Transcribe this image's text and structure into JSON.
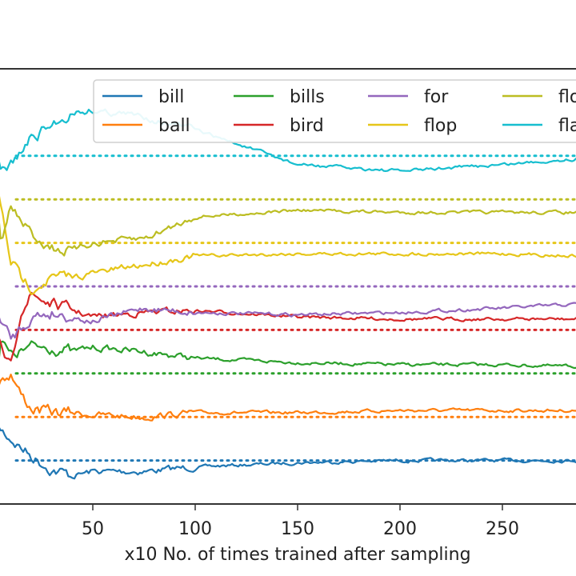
{
  "chart_data": {
    "type": "line",
    "title": "",
    "xlabel": "x10 No. of times trained after sampling",
    "ylabel": "",
    "x_ticks": [
      50,
      100,
      150,
      200,
      250
    ],
    "xlim": [
      0,
      290
    ],
    "legend_position": "top-right",
    "legend_columns": 4,
    "series": [
      {
        "name": "bill",
        "color": "#1f77b4",
        "target": 0.9,
        "points": [
          [
            0,
            0.79
          ],
          [
            5,
            0.83
          ],
          [
            10,
            0.85
          ],
          [
            20,
            0.89
          ],
          [
            30,
            0.92
          ],
          [
            40,
            0.935
          ],
          [
            50,
            0.925
          ],
          [
            75,
            0.925
          ],
          [
            100,
            0.915
          ],
          [
            150,
            0.905
          ],
          [
            200,
            0.9
          ],
          [
            250,
            0.9
          ],
          [
            290,
            0.9
          ]
        ]
      },
      {
        "name": "ball",
        "color": "#ff7f0e",
        "target": 0.8,
        "points": [
          [
            0,
            0.76
          ],
          [
            5,
            0.71
          ],
          [
            10,
            0.7
          ],
          [
            15,
            0.75
          ],
          [
            20,
            0.78
          ],
          [
            30,
            0.79
          ],
          [
            40,
            0.79
          ],
          [
            50,
            0.795
          ],
          [
            75,
            0.8
          ],
          [
            100,
            0.79
          ],
          [
            150,
            0.79
          ],
          [
            200,
            0.785
          ],
          [
            250,
            0.785
          ],
          [
            290,
            0.785
          ]
        ]
      },
      {
        "name": "bills",
        "color": "#2ca02c",
        "target": 0.7,
        "points": [
          [
            0,
            0.85
          ],
          [
            5,
            0.62
          ],
          [
            10,
            0.66
          ],
          [
            20,
            0.64
          ],
          [
            30,
            0.64
          ],
          [
            40,
            0.65
          ],
          [
            50,
            0.64
          ],
          [
            75,
            0.65
          ],
          [
            100,
            0.665
          ],
          [
            150,
            0.675
          ],
          [
            200,
            0.68
          ],
          [
            250,
            0.68
          ],
          [
            290,
            0.685
          ]
        ]
      },
      {
        "name": "bird",
        "color": "#d62728",
        "target": 0.6,
        "points": [
          [
            0,
            0.58
          ],
          [
            5,
            0.65
          ],
          [
            10,
            0.69
          ],
          [
            15,
            0.55
          ],
          [
            20,
            0.52
          ],
          [
            30,
            0.54
          ],
          [
            40,
            0.555
          ],
          [
            50,
            0.57
          ],
          [
            75,
            0.56
          ],
          [
            100,
            0.555
          ],
          [
            150,
            0.57
          ],
          [
            200,
            0.575
          ],
          [
            250,
            0.575
          ],
          [
            290,
            0.575
          ]
        ]
      },
      {
        "name": "for",
        "color": "#9467bd",
        "target": 0.5,
        "points": [
          [
            0,
            0.48
          ],
          [
            5,
            0.58
          ],
          [
            10,
            0.62
          ],
          [
            20,
            0.57
          ],
          [
            30,
            0.56
          ],
          [
            40,
            0.57
          ],
          [
            50,
            0.58
          ],
          [
            75,
            0.55
          ],
          [
            100,
            0.56
          ],
          [
            150,
            0.565
          ],
          [
            200,
            0.56
          ],
          [
            250,
            0.55
          ],
          [
            290,
            0.54
          ]
        ]
      },
      {
        "name": "flop",
        "color": "#e6c619",
        "target": 0.4,
        "points": [
          [
            0,
            0.18
          ],
          [
            5,
            0.32
          ],
          [
            10,
            0.44
          ],
          [
            15,
            0.48
          ],
          [
            20,
            0.5
          ],
          [
            30,
            0.48
          ],
          [
            40,
            0.48
          ],
          [
            50,
            0.47
          ],
          [
            75,
            0.45
          ],
          [
            100,
            0.43
          ],
          [
            150,
            0.425
          ],
          [
            200,
            0.425
          ],
          [
            250,
            0.425
          ],
          [
            290,
            0.43
          ]
        ]
      },
      {
        "name": "flo",
        "color": "#bcbd22",
        "target": 0.3,
        "points": [
          [
            0,
            0.12
          ],
          [
            5,
            0.4
          ],
          [
            10,
            0.32
          ],
          [
            20,
            0.38
          ],
          [
            30,
            0.41
          ],
          [
            40,
            0.42
          ],
          [
            50,
            0.4
          ],
          [
            75,
            0.39
          ],
          [
            100,
            0.34
          ],
          [
            150,
            0.325
          ],
          [
            200,
            0.33
          ],
          [
            250,
            0.33
          ],
          [
            290,
            0.33
          ]
        ]
      },
      {
        "name": "fla",
        "color": "#17becf",
        "target": 0.2,
        "points": [
          [
            0,
            0.14
          ],
          [
            5,
            0.24
          ],
          [
            10,
            0.22
          ],
          [
            15,
            0.19
          ],
          [
            20,
            0.16
          ],
          [
            30,
            0.13
          ],
          [
            40,
            0.1
          ],
          [
            50,
            0.095
          ],
          [
            75,
            0.11
          ],
          [
            100,
            0.14
          ],
          [
            150,
            0.22
          ],
          [
            200,
            0.235
          ],
          [
            250,
            0.22
          ],
          [
            290,
            0.205
          ]
        ]
      }
    ]
  }
}
